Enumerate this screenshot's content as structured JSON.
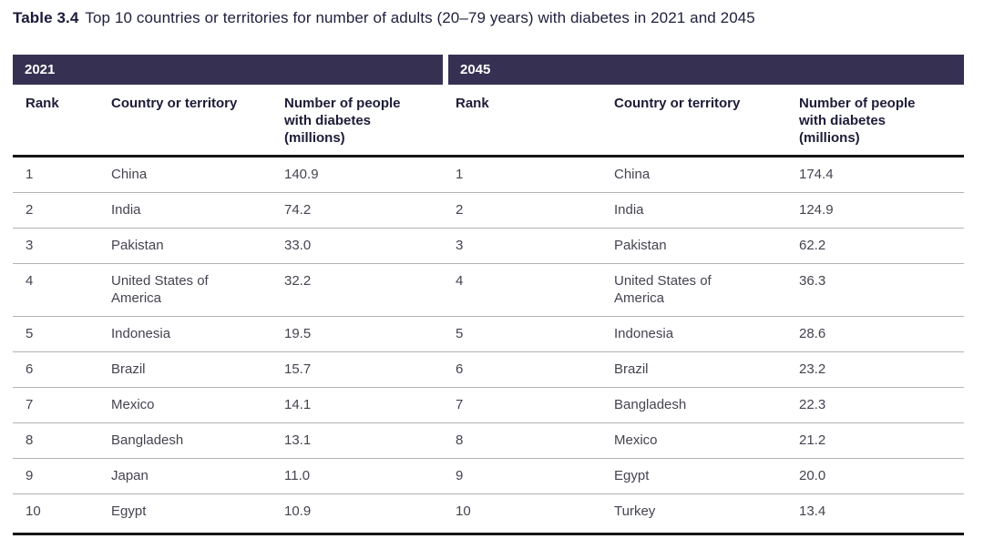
{
  "caption": {
    "label": "Table 3.4",
    "text": "Top 10 countries or territories for number of adults (20–79 years) with diabetes in 2021 and 2045"
  },
  "columns": {
    "rank": "Rank",
    "country": "Country or territory",
    "value": "Number of people with diabetes (millions)"
  },
  "year_2021": {
    "year": "2021",
    "rows": [
      {
        "rank": "1",
        "country": "China",
        "value": "140.9"
      },
      {
        "rank": "2",
        "country": "India",
        "value": "74.2"
      },
      {
        "rank": "3",
        "country": "Pakistan",
        "value": "33.0"
      },
      {
        "rank": "4",
        "country": "United States of America",
        "value": "32.2"
      },
      {
        "rank": "5",
        "country": "Indonesia",
        "value": "19.5"
      },
      {
        "rank": "6",
        "country": "Brazil",
        "value": "15.7"
      },
      {
        "rank": "7",
        "country": "Mexico",
        "value": "14.1"
      },
      {
        "rank": "8",
        "country": "Bangladesh",
        "value": "13.1"
      },
      {
        "rank": "9",
        "country": "Japan",
        "value": "11.0"
      },
      {
        "rank": "10",
        "country": "Egypt",
        "value": "10.9"
      }
    ]
  },
  "year_2045": {
    "year": "2045",
    "rows": [
      {
        "rank": "1",
        "country": "China",
        "value": "174.4"
      },
      {
        "rank": "2",
        "country": "India",
        "value": "124.9"
      },
      {
        "rank": "3",
        "country": "Pakistan",
        "value": "62.2"
      },
      {
        "rank": "4",
        "country": "United States of America",
        "value": "36.3"
      },
      {
        "rank": "5",
        "country": "Indonesia",
        "value": "28.6"
      },
      {
        "rank": "6",
        "country": "Brazil",
        "value": "23.2"
      },
      {
        "rank": "7",
        "country": "Bangladesh",
        "value": "22.3"
      },
      {
        "rank": "8",
        "country": "Mexico",
        "value": "21.2"
      },
      {
        "rank": "9",
        "country": "Egypt",
        "value": "20.0"
      },
      {
        "rank": "10",
        "country": "Turkey",
        "value": "13.4"
      }
    ]
  },
  "colors": {
    "band_background": "#363153",
    "band_text": "#ffffff",
    "caption_text": "#21203f",
    "header_text": "#1d1c38",
    "data_text": "#454450",
    "thick_rule": "#161616",
    "row_divider": "#b3b3b3"
  }
}
